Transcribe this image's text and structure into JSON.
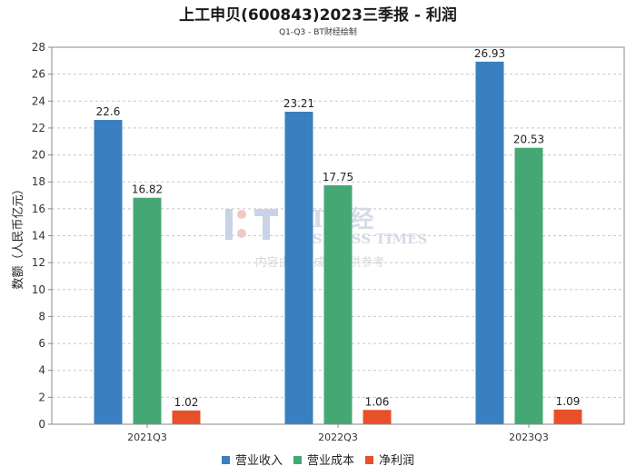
{
  "chart_data": {
    "type": "bar",
    "title": "上工申贝(600843)2023三季报 - 利润",
    "subtitle": "Q1-Q3 - BT财经绘制",
    "ylabel": "数额（人民币亿元）",
    "xlabel": "",
    "ylim": [
      0,
      28
    ],
    "yticks": [
      0,
      2,
      4,
      6,
      8,
      10,
      12,
      14,
      16,
      18,
      20,
      22,
      24,
      26,
      28
    ],
    "grid": true,
    "legend_position": "bottom-center",
    "categories": [
      "2021Q3",
      "2022Q3",
      "2023Q3"
    ],
    "series": [
      {
        "name": "营业收入",
        "color": "#3a7fbf",
        "values": [
          22.6,
          23.21,
          26.93
        ]
      },
      {
        "name": "营业成本",
        "color": "#45a874",
        "values": [
          16.82,
          17.75,
          20.53
        ]
      },
      {
        "name": "净利润",
        "color": "#e8502a",
        "values": [
          1.02,
          1.06,
          1.09
        ]
      }
    ]
  },
  "watermark": {
    "brand_cn": "BT财经",
    "brand_en": "BUSINESS TIMES",
    "notice": "内容由AI生成，仅供参考"
  }
}
